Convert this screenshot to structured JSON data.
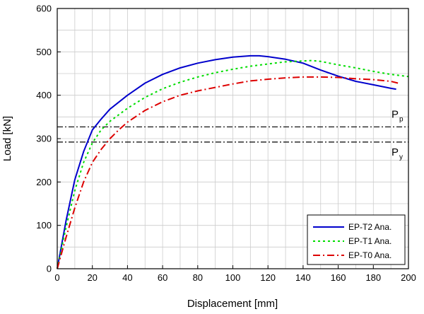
{
  "chart_data": {
    "type": "line",
    "title": "",
    "xlabel": "Displacement [mm]",
    "ylabel": "Load [kN]",
    "xlim": [
      0,
      200
    ],
    "ylim": [
      0,
      600
    ],
    "xticks": [
      0,
      20,
      40,
      60,
      80,
      100,
      120,
      140,
      160,
      180,
      200
    ],
    "yticks": [
      0,
      100,
      200,
      300,
      400,
      500,
      600
    ],
    "grid": true,
    "legend_position": "bottom-right",
    "series": [
      {
        "name": "EP-T2 Ana.",
        "color": "#0000cc",
        "style": "solid",
        "x": [
          0,
          5,
          10,
          15,
          20,
          25,
          30,
          40,
          50,
          60,
          70,
          80,
          90,
          100,
          110,
          115,
          120,
          130,
          140,
          150,
          160,
          170,
          180,
          190,
          193
        ],
        "y": [
          0,
          110,
          205,
          270,
          320,
          345,
          368,
          400,
          428,
          448,
          463,
          474,
          482,
          488,
          491,
          491,
          489,
          483,
          474,
          458,
          444,
          432,
          424,
          416,
          414
        ]
      },
      {
        "name": "EP-T1 Ana.",
        "color": "#00dd00",
        "style": "dotted",
        "x": [
          0,
          5,
          10,
          15,
          20,
          25,
          30,
          40,
          50,
          60,
          70,
          80,
          90,
          100,
          110,
          120,
          130,
          140,
          145,
          150,
          160,
          170,
          180,
          190,
          200
        ],
        "y": [
          0,
          95,
          180,
          245,
          290,
          320,
          340,
          370,
          395,
          415,
          430,
          442,
          452,
          460,
          467,
          472,
          477,
          479,
          480,
          478,
          470,
          463,
          455,
          448,
          443
        ]
      },
      {
        "name": "EP-T0 Ana.",
        "color": "#dd0000",
        "style": "dash-dot",
        "x": [
          0,
          5,
          10,
          15,
          20,
          25,
          30,
          35,
          40,
          50,
          60,
          70,
          80,
          90,
          100,
          110,
          120,
          130,
          140,
          150,
          160,
          170,
          180,
          190,
          194
        ],
        "y": [
          0,
          72,
          140,
          200,
          245,
          275,
          300,
          320,
          338,
          365,
          385,
          400,
          410,
          418,
          426,
          433,
          437,
          440,
          442,
          442,
          441,
          438,
          436,
          432,
          428
        ]
      }
    ],
    "reference_lines": [
      {
        "label": "P",
        "subscript": "p",
        "y": 327
      },
      {
        "label": "P",
        "subscript": "y",
        "y": 292
      }
    ]
  }
}
